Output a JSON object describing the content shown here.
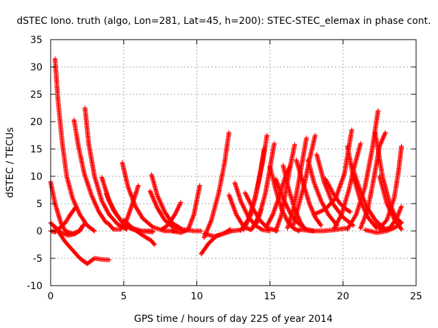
{
  "chart_data": {
    "type": "scatter",
    "title": "dSTEC Iono. truth (algo, Lon=281, Lat=45, h=200): STEC-STEC_elemax in phase cont.",
    "xlabel": "GPS time / hours of day 225 of year 2014",
    "ylabel": "dSTEC  / TECUs",
    "xlim": [
      0,
      25
    ],
    "ylim": [
      -10,
      35
    ],
    "xticks": [
      0,
      5,
      10,
      15,
      20,
      25
    ],
    "yticks": [
      -10,
      -5,
      0,
      5,
      10,
      15,
      20,
      25,
      30,
      35
    ],
    "grid": true,
    "legend": "none",
    "marker": "+",
    "color": "#ff0000",
    "series": [
      {
        "x": [
          0.3,
          0.5,
          0.8,
          1.1,
          1.5,
          2.0,
          2.5,
          3.0
        ],
        "y": [
          31.5,
          24,
          16,
          10,
          6,
          3,
          1,
          0
        ]
      },
      {
        "x": [
          1.6,
          1.9,
          2.3,
          2.8,
          3.3,
          3.8
        ],
        "y": [
          20.3,
          15.5,
          10.5,
          6.5,
          3.5,
          1.5
        ]
      },
      {
        "x": [
          2.35,
          2.6,
          3.0,
          3.5,
          4.0,
          4.6,
          5.2
        ],
        "y": [
          22.5,
          16,
          10,
          5.5,
          3,
          1.2,
          0.3
        ]
      },
      {
        "x": [
          0.0,
          0.3,
          0.7,
          1.0,
          1.5,
          2.0,
          2.2
        ],
        "y": [
          9,
          5,
          1.5,
          0,
          -0.5,
          0,
          1
        ]
      },
      {
        "x": [
          0.0,
          0.5,
          1.0,
          1.5,
          2.0,
          2.5,
          3.0,
          3.5,
          4.0
        ],
        "y": [
          1.5,
          0,
          -2,
          -3.5,
          -5,
          -6,
          -5,
          -5.2,
          -5.3
        ]
      },
      {
        "x": [
          0.0,
          0.3,
          0.6,
          1.0,
          1.3,
          1.7
        ],
        "y": [
          0,
          -0.2,
          0.5,
          1.5,
          2.8,
          4.3
        ]
      },
      {
        "x": [
          0.2,
          0.7,
          1.2,
          1.7,
          2.0,
          2.3
        ],
        "y": [
          1,
          -0.3,
          -0.8,
          -0.5,
          0.2,
          1.2
        ]
      },
      {
        "x": [
          3.5,
          4.0,
          4.5,
          5.0,
          5.6,
          6.2,
          7.0
        ],
        "y": [
          9.8,
          5.5,
          3,
          1.2,
          0.3,
          0,
          0
        ]
      },
      {
        "x": [
          3.8,
          4.3,
          4.8,
          5.5,
          6.2,
          7.0
        ],
        "y": [
          6.8,
          3.8,
          2,
          0.6,
          0,
          -0.2
        ]
      },
      {
        "x": [
          4.9,
          5.3,
          5.8,
          6.3,
          7.0,
          7.8,
          8.5
        ],
        "y": [
          12.5,
          8,
          4.5,
          2.3,
          0.7,
          0,
          0
        ]
      },
      {
        "x": [
          5.0,
          5.7,
          6.3,
          6.9,
          7.1
        ],
        "y": [
          2,
          0.3,
          -0.8,
          -1.8,
          -2.5
        ]
      },
      {
        "x": [
          3.9,
          4.3,
          4.8,
          5.2,
          5.6,
          6.0
        ],
        "y": [
          1.5,
          0.3,
          0.3,
          2,
          5,
          8.3
        ]
      },
      {
        "x": [
          6.9,
          7.3,
          7.8,
          8.3,
          9.0,
          9.8,
          10.3
        ],
        "y": [
          10.3,
          6.5,
          3.5,
          1.5,
          0.3,
          0,
          0
        ]
      },
      {
        "x": [
          6.8,
          7.3,
          7.8,
          8.3,
          8.9
        ],
        "y": [
          7.3,
          4.2,
          2,
          0.8,
          0.2
        ]
      },
      {
        "x": [
          7.6,
          8.0,
          8.5,
          8.9
        ],
        "y": [
          0.3,
          1,
          3,
          5.2
        ]
      },
      {
        "x": [
          8.3,
          8.9,
          9.4,
          9.8,
          10.2
        ],
        "y": [
          0,
          -0.3,
          0.2,
          3,
          8.3
        ]
      },
      {
        "x": [
          10.3,
          10.8,
          11.3,
          11.8,
          12.3
        ],
        "y": [
          -4.2,
          -2.3,
          -1,
          -0.5,
          0.3
        ]
      },
      {
        "x": [
          10.5,
          11.0,
          11.5,
          11.9,
          12.2
        ],
        "y": [
          -1.2,
          2,
          7,
          12.5,
          18
        ]
      },
      {
        "x": [
          10.5,
          11.2,
          11.8,
          12.4,
          13.0
        ],
        "y": [
          -0.5,
          -1,
          -0.5,
          0,
          0.2
        ]
      },
      {
        "x": [
          12.6,
          13.0,
          13.5,
          14.0,
          14.5,
          15.0
        ],
        "y": [
          8.8,
          5.5,
          2.7,
          1,
          0.2,
          0
        ]
      },
      {
        "x": [
          13.3,
          13.8,
          14.3,
          14.8,
          15.5
        ],
        "y": [
          7,
          4.3,
          2,
          0.6,
          0
        ]
      },
      {
        "x": [
          12.2,
          12.7,
          13.2,
          13.7,
          14.1,
          14.4
        ],
        "y": [
          6.6,
          3,
          0.8,
          0.2,
          1.5,
          4
        ]
      },
      {
        "x": [
          13.0,
          13.5,
          14.0,
          14.3,
          14.6
        ],
        "y": [
          0.1,
          2,
          6,
          10,
          15
        ]
      },
      {
        "x": [
          13.2,
          13.7,
          14.1,
          14.5,
          14.8
        ],
        "y": [
          0.2,
          3,
          7.5,
          12.5,
          17.5
        ]
      },
      {
        "x": [
          13.8,
          14.3,
          14.7,
          15.0,
          15.3
        ],
        "y": [
          0.5,
          3,
          7,
          11.5,
          16
        ]
      },
      {
        "x": [
          14.8,
          15.2,
          15.6,
          16.0,
          16.4
        ],
        "y": [
          1,
          3,
          6,
          9.5,
          12
        ]
      },
      {
        "x": [
          15.0,
          15.4,
          15.8,
          16.2,
          16.6,
          17.0
        ],
        "y": [
          11.8,
          7.5,
          4,
          1.8,
          0.5,
          0
        ]
      },
      {
        "x": [
          15.4,
          15.9,
          16.4,
          16.9,
          17.5,
          18.0
        ],
        "y": [
          9.5,
          6,
          3.2,
          1.5,
          0.3,
          0
        ]
      },
      {
        "x": [
          15.9,
          16.3,
          16.7,
          17.1,
          17.4
        ],
        "y": [
          12,
          7.5,
          4,
          1.5,
          0.3
        ]
      },
      {
        "x": [
          15.4,
          15.8,
          16.1,
          16.4,
          16.7
        ],
        "y": [
          0,
          3,
          7.5,
          12,
          15.8
        ]
      },
      {
        "x": [
          16.2,
          16.6,
          16.9,
          17.2,
          17.5
        ],
        "y": [
          0.5,
          4,
          8,
          12.5,
          17
        ]
      },
      {
        "x": [
          16.6,
          17.0,
          17.4,
          17.7,
          18.1
        ],
        "y": [
          1,
          5,
          9,
          13,
          17.5
        ]
      },
      {
        "x": [
          16.8,
          17.3,
          17.7,
          18.1,
          18.5
        ],
        "y": [
          13,
          8.5,
          5,
          2.5,
          1
        ]
      },
      {
        "x": [
          17.6,
          18.0,
          18.5,
          19.0,
          19.6
        ],
        "y": [
          13,
          9,
          5.5,
          3,
          1
        ]
      },
      {
        "x": [
          18.2,
          18.7,
          19.3,
          20.0,
          20.7
        ],
        "y": [
          14,
          9,
          5,
          2.5,
          1
        ]
      },
      {
        "x": [
          17.0,
          17.8,
          18.6,
          19.4,
          20.2
        ],
        "y": [
          0.3,
          0,
          0,
          0.2,
          0.5
        ]
      },
      {
        "x": [
          18.8,
          19.3,
          19.8,
          20.2,
          20.5
        ],
        "y": [
          9.5,
          7,
          5,
          4,
          3.5
        ]
      },
      {
        "x": [
          18.0,
          18.8,
          19.5,
          20.1,
          20.6
        ],
        "y": [
          3,
          4,
          6,
          10.5,
          18.5
        ]
      },
      {
        "x": [
          19.4,
          19.9,
          20.4,
          20.8,
          21.2
        ],
        "y": [
          0.5,
          3,
          7.5,
          12,
          16
        ]
      },
      {
        "x": [
          20.3,
          20.7,
          21.2,
          21.7,
          22.3
        ],
        "y": [
          15.5,
          10,
          5.5,
          2.5,
          0.5
        ]
      },
      {
        "x": [
          20.6,
          21.1,
          21.6,
          22.2,
          22.8
        ],
        "y": [
          12,
          8,
          4.5,
          2,
          0.5
        ]
      },
      {
        "x": [
          20.3,
          20.9,
          21.5,
          22.0,
          22.4
        ],
        "y": [
          0.3,
          3,
          8,
          15,
          22
        ]
      },
      {
        "x": [
          21.2,
          21.7,
          22.1,
          22.5,
          22.9
        ],
        "y": [
          0.5,
          4,
          9.5,
          15.5,
          18
        ]
      },
      {
        "x": [
          22.2,
          22.7,
          23.2,
          23.6,
          24.0
        ],
        "y": [
          18,
          10,
          5,
          2.5,
          1.5
        ]
      },
      {
        "x": [
          22.5,
          23.0,
          23.5,
          24.0
        ],
        "y": [
          10,
          5,
          2.2,
          0.3
        ]
      },
      {
        "x": [
          22.0,
          22.6,
          23.2,
          23.7,
          24.0
        ],
        "y": [
          1.5,
          0.3,
          0.5,
          2.5,
          4.5
        ]
      },
      {
        "x": [
          22.5,
          23.0,
          23.5,
          23.8,
          24.0
        ],
        "y": [
          0.5,
          2,
          6,
          11,
          15.5
        ]
      },
      {
        "x": [
          21.5,
          22.3,
          23.0,
          23.6,
          24.0
        ],
        "y": [
          0.2,
          -0.3,
          0,
          0.7,
          1.5
        ]
      }
    ]
  }
}
